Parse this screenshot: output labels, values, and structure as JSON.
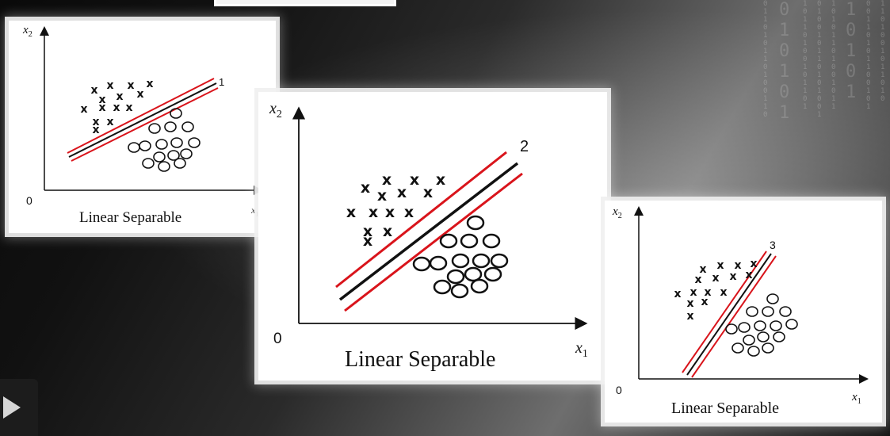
{
  "panels": [
    {
      "caption": "Linear Separable",
      "x_label": "x",
      "x_sub": "1",
      "y_label": "x",
      "y_sub": "2",
      "origin": "0",
      "line_number": "1"
    },
    {
      "caption": "Linear Separable",
      "x_label": "x",
      "x_sub": "1",
      "y_label": "x",
      "y_sub": "2",
      "origin": "0",
      "line_number": "2"
    },
    {
      "caption": "Linear Separable",
      "x_label": "x",
      "x_sub": "1",
      "y_label": "x",
      "y_sub": "2",
      "origin": "0",
      "line_number": "3"
    }
  ],
  "marker_symbol": "x",
  "colors": {
    "margin_line": "#d9141b",
    "decision_line": "#111111",
    "background_light": "#6e6e6e"
  },
  "icons": {
    "play": "play-icon"
  }
}
